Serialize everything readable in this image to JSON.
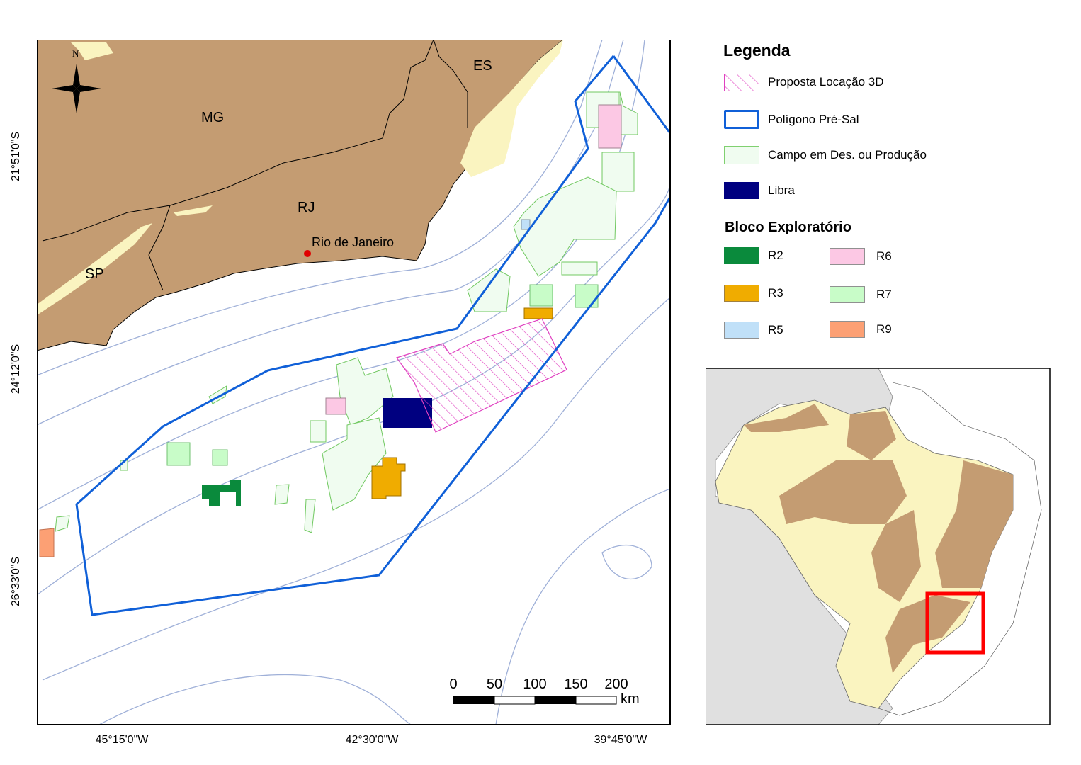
{
  "map": {
    "place_labels": {
      "mg": "MG",
      "es": "ES",
      "rj": "RJ",
      "sp": "SP",
      "rio": "Rio de Janeiro"
    },
    "north_label": "N",
    "lat_labels": [
      "21°51'0\"S",
      "24°12'0\"S",
      "26°33'0\"S"
    ],
    "lon_labels": [
      "45°15'0\"W",
      "42°30'0\"W",
      "39°45'0\"W"
    ],
    "scale": {
      "ticks": [
        "0",
        "50",
        "100",
        "150",
        "200"
      ],
      "unit": "km"
    }
  },
  "legend": {
    "title": "Legenda",
    "items": [
      {
        "label": "Proposta Locação 3D",
        "color": "#e040c0"
      },
      {
        "label": "Polígono Pré-Sal",
        "color": "#1060d8"
      },
      {
        "label": "Campo em Des. ou Produção",
        "color": "#80d070"
      },
      {
        "label": "Libra",
        "color": "#000080"
      }
    ],
    "block_title": "Bloco Exploratório",
    "blocks": [
      {
        "label": "R2",
        "color": "#0a8a3c"
      },
      {
        "label": "R6",
        "color": "#fcc8e4"
      },
      {
        "label": "R3",
        "color": "#f0ac00"
      },
      {
        "label": "R7",
        "color": "#c8fcc8"
      },
      {
        "label": "R5",
        "color": "#c0e0f8"
      },
      {
        "label": "R9",
        "color": "#fca074"
      }
    ]
  },
  "colors": {
    "land": "#c49c72",
    "highland": "#faf4c0",
    "bathymetry": "#9fb0d8",
    "inset_bg": "#e0e0e0",
    "inset_box": "#ff0000"
  }
}
